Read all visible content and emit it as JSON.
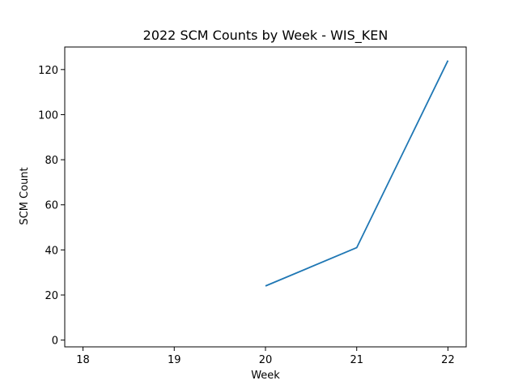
{
  "chart_data": {
    "type": "line",
    "title": "2022 SCM Counts by Week - WIS_KEN",
    "xlabel": "Week",
    "ylabel": "SCM Count",
    "x_ticks": [
      18,
      19,
      20,
      21,
      22
    ],
    "y_ticks": [
      0,
      20,
      40,
      60,
      80,
      100,
      120
    ],
    "xlim": [
      17.8,
      22.2
    ],
    "ylim": [
      -3,
      130
    ],
    "grid": false,
    "series": [
      {
        "x": [
          20,
          21,
          22
        ],
        "values": [
          24,
          41,
          124
        ],
        "color": "#1f77b4"
      }
    ]
  }
}
